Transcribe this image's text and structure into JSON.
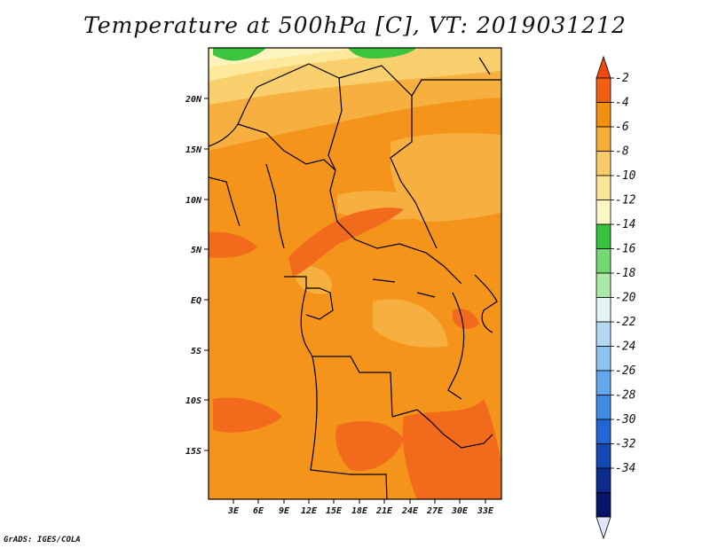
{
  "map": {
    "title": "Temperature at 500hPa [C], VT: 2019031212",
    "credit": "GrADS: IGES/COLA",
    "lat_ticks": [
      "20N",
      "15N",
      "10N",
      "5N",
      "EQ",
      "5S",
      "10S",
      "15S"
    ],
    "lon_ticks": [
      "3E",
      "6E",
      "9E",
      "12E",
      "15E",
      "18E",
      "21E",
      "24E",
      "27E",
      "30E",
      "33E"
    ]
  },
  "legend": {
    "labels": [
      "-2",
      "-4",
      "-6",
      "-8",
      "-10",
      "-12",
      "-14",
      "-16",
      "-18",
      "-20",
      "-22",
      "-24",
      "-26",
      "-28",
      "-30",
      "-32",
      "-34"
    ],
    "colors": [
      "#f06010",
      "#f49010",
      "#f7ae3a",
      "#fac96a",
      "#fce596",
      "#fcf6c3",
      "#36c43e",
      "#72d874",
      "#aee8a6",
      "#e2f6f8",
      "#b4d9f5",
      "#8ec2f1",
      "#63a7ec",
      "#3f8ae4",
      "#2066d4",
      "#1448b4",
      "#0c2a8c",
      "#081468"
    ],
    "top_triangle_color": "#f04a10",
    "bottom_triangle_color": "#dfe6fb"
  },
  "palette": {
    "frame": "#000000",
    "warm_core": "#f26a1c",
    "warm": "#f4941b",
    "mid": "#f7b040",
    "cool": "#fad06e",
    "cooler": "#fde89c",
    "coolest": "#fdf5c0",
    "green": "#3dc43e"
  }
}
